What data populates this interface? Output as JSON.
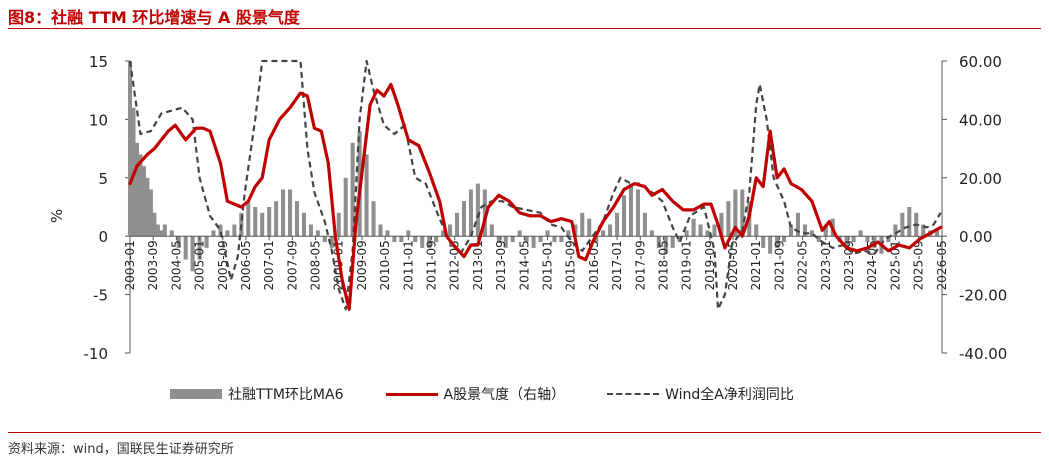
{
  "title": "图8：社融 TTM 环比增速与 A 股景气度",
  "source": "资料来源：wind，国联民生证券研究所",
  "chart_data": {
    "type": "bar+line",
    "ylabel_left": "%",
    "ylim_left": [
      -10,
      15
    ],
    "yticks_left": [
      "15",
      "10",
      "5",
      "0",
      "-5",
      "-10"
    ],
    "ylim_right": [
      -40,
      60
    ],
    "yticks_right": [
      "60.00",
      "40.00",
      "20.00",
      "0.00",
      "-20.00",
      "-40.00"
    ],
    "xlim": [
      2003.0,
      2026.34
    ],
    "xticks": [
      "2003-01",
      "2003-09",
      "2004-05",
      "2005-01",
      "2005-09",
      "2006-05",
      "2007-01",
      "2007-09",
      "2008-05",
      "2009-01",
      "2009-09",
      "2010-05",
      "2011-01",
      "2011-09",
      "2012-05",
      "2013-01",
      "2013-09",
      "2014-05",
      "2015-01",
      "2015-09",
      "2016-05",
      "2017-01",
      "2017-09",
      "2018-05",
      "2019-01",
      "2019-09",
      "2020-05",
      "2021-01",
      "2021-09",
      "2022-05",
      "2023-01",
      "2023-09",
      "2024-05",
      "2025-01",
      "2025-09",
      "2026-05"
    ],
    "legend": {
      "position": "bottom",
      "items": [
        "社融TTM环比MA6",
        "A股景气度（右轴）",
        "Wind全A净利润同比"
      ]
    },
    "colors": {
      "bar": "#8f8f8f",
      "red_line": "#c00000",
      "dash_line": "#444444"
    },
    "series": [
      {
        "name": "社融TTM环比MA6",
        "type": "bar",
        "axis": "left",
        "points": [
          [
            2003.0,
            15
          ],
          [
            2003.1,
            11
          ],
          [
            2003.2,
            8
          ],
          [
            2003.3,
            7
          ],
          [
            2003.4,
            6
          ],
          [
            2003.5,
            5
          ],
          [
            2003.6,
            4
          ],
          [
            2003.7,
            2
          ],
          [
            2003.8,
            1
          ],
          [
            2003.9,
            0.5
          ],
          [
            2004.0,
            1
          ],
          [
            2004.2,
            0.5
          ],
          [
            2004.4,
            -1
          ],
          [
            2004.6,
            -2
          ],
          [
            2004.8,
            -3
          ],
          [
            2005.0,
            -2
          ],
          [
            2005.2,
            -1
          ],
          [
            2005.4,
            0.5
          ],
          [
            2005.6,
            1
          ],
          [
            2005.8,
            0.5
          ],
          [
            2006.0,
            1
          ],
          [
            2006.2,
            2
          ],
          [
            2006.4,
            3
          ],
          [
            2006.6,
            2.5
          ],
          [
            2006.8,
            2
          ],
          [
            2007.0,
            2.5
          ],
          [
            2007.2,
            3
          ],
          [
            2007.4,
            4
          ],
          [
            2007.6,
            4
          ],
          [
            2007.8,
            3
          ],
          [
            2008.0,
            2
          ],
          [
            2008.2,
            1
          ],
          [
            2008.4,
            0.5
          ],
          [
            2008.6,
            -0.5
          ],
          [
            2008.8,
            -1
          ],
          [
            2009.0,
            2
          ],
          [
            2009.2,
            5
          ],
          [
            2009.4,
            8
          ],
          [
            2009.6,
            9
          ],
          [
            2009.8,
            7
          ],
          [
            2010.0,
            3
          ],
          [
            2010.2,
            1
          ],
          [
            2010.4,
            0.5
          ],
          [
            2010.6,
            -0.5
          ],
          [
            2010.8,
            -0.5
          ],
          [
            2011.0,
            0.5
          ],
          [
            2011.2,
            -0.5
          ],
          [
            2011.4,
            -1
          ],
          [
            2011.6,
            -1
          ],
          [
            2011.8,
            -0.5
          ],
          [
            2012.0,
            0.5
          ],
          [
            2012.2,
            1
          ],
          [
            2012.4,
            2
          ],
          [
            2012.6,
            3
          ],
          [
            2012.8,
            4
          ],
          [
            2013.0,
            4.5
          ],
          [
            2013.2,
            4
          ],
          [
            2013.4,
            1
          ],
          [
            2013.6,
            -0.5
          ],
          [
            2013.8,
            -1
          ],
          [
            2014.0,
            -0.5
          ],
          [
            2014.2,
            0.5
          ],
          [
            2014.4,
            -0.5
          ],
          [
            2014.6,
            -1
          ],
          [
            2014.8,
            -0.5
          ],
          [
            2015.0,
            0.5
          ],
          [
            2015.2,
            -0.5
          ],
          [
            2015.4,
            -0.5
          ],
          [
            2015.6,
            0.5
          ],
          [
            2015.8,
            1
          ],
          [
            2016.0,
            2
          ],
          [
            2016.2,
            1.5
          ],
          [
            2016.4,
            -0.5
          ],
          [
            2016.6,
            0.5
          ],
          [
            2016.8,
            1
          ],
          [
            2017.0,
            2
          ],
          [
            2017.2,
            3.5
          ],
          [
            2017.4,
            4.5
          ],
          [
            2017.6,
            4
          ],
          [
            2017.8,
            2
          ],
          [
            2018.0,
            0.5
          ],
          [
            2018.2,
            -1
          ],
          [
            2018.4,
            -1.5
          ],
          [
            2018.6,
            -1
          ],
          [
            2018.8,
            -0.5
          ],
          [
            2019.0,
            0.5
          ],
          [
            2019.2,
            1.5
          ],
          [
            2019.4,
            1
          ],
          [
            2019.6,
            0.5
          ],
          [
            2019.8,
            1
          ],
          [
            2020.0,
            2
          ],
          [
            2020.2,
            3
          ],
          [
            2020.4,
            4
          ],
          [
            2020.6,
            4
          ],
          [
            2020.8,
            3
          ],
          [
            2021.0,
            1
          ],
          [
            2021.2,
            -1
          ],
          [
            2021.4,
            -1.5
          ],
          [
            2021.6,
            -1
          ],
          [
            2021.8,
            -0.5
          ],
          [
            2022.0,
            1
          ],
          [
            2022.2,
            2
          ],
          [
            2022.4,
            1
          ],
          [
            2022.6,
            0.5
          ],
          [
            2022.8,
            -0.5
          ],
          [
            2023.0,
            1
          ],
          [
            2023.2,
            1.5
          ],
          [
            2023.4,
            -0.5
          ],
          [
            2023.6,
            -1
          ],
          [
            2023.8,
            -0.5
          ],
          [
            2024.0,
            0.5
          ],
          [
            2024.2,
            -0.5
          ],
          [
            2024.4,
            -1
          ],
          [
            2024.6,
            -1.5
          ],
          [
            2024.8,
            -0.5
          ],
          [
            2025.0,
            1
          ],
          [
            2025.2,
            2
          ],
          [
            2025.4,
            2.5
          ],
          [
            2025.6,
            2
          ],
          [
            2025.8,
            1
          ],
          [
            2026.0,
            0.5
          ],
          [
            2026.2,
            0.5
          ]
        ]
      },
      {
        "name": "A股景气度（右轴）",
        "type": "line",
        "axis": "right",
        "points": [
          [
            2003.0,
            18
          ],
          [
            2003.2,
            24
          ],
          [
            2003.5,
            28
          ],
          [
            2003.7,
            30
          ],
          [
            2003.9,
            33
          ],
          [
            2004.1,
            36
          ],
          [
            2004.3,
            38
          ],
          [
            2004.6,
            33
          ],
          [
            2004.9,
            37
          ],
          [
            2005.1,
            37
          ],
          [
            2005.3,
            36
          ],
          [
            2005.6,
            25
          ],
          [
            2005.8,
            12
          ],
          [
            2006.0,
            11
          ],
          [
            2006.2,
            10
          ],
          [
            2006.4,
            12
          ],
          [
            2006.6,
            17
          ],
          [
            2006.8,
            20
          ],
          [
            2007.0,
            33
          ],
          [
            2007.3,
            40
          ],
          [
            2007.6,
            44
          ],
          [
            2007.9,
            49
          ],
          [
            2008.1,
            48
          ],
          [
            2008.3,
            37
          ],
          [
            2008.5,
            36
          ],
          [
            2008.7,
            25
          ],
          [
            2008.9,
            0
          ],
          [
            2009.1,
            -15
          ],
          [
            2009.3,
            -25
          ],
          [
            2009.5,
            5
          ],
          [
            2009.7,
            25
          ],
          [
            2009.9,
            45
          ],
          [
            2010.1,
            50
          ],
          [
            2010.3,
            48
          ],
          [
            2010.5,
            52
          ],
          [
            2010.7,
            45
          ],
          [
            2011.0,
            33
          ],
          [
            2011.3,
            31
          ],
          [
            2011.6,
            22
          ],
          [
            2011.9,
            12
          ],
          [
            2012.1,
            0
          ],
          [
            2012.3,
            -3
          ],
          [
            2012.6,
            -7
          ],
          [
            2012.8,
            -3
          ],
          [
            2013.0,
            -3
          ],
          [
            2013.3,
            10
          ],
          [
            2013.6,
            14
          ],
          [
            2013.9,
            12
          ],
          [
            2014.2,
            8
          ],
          [
            2014.5,
            7
          ],
          [
            2014.8,
            7
          ],
          [
            2015.1,
            5
          ],
          [
            2015.4,
            6
          ],
          [
            2015.7,
            5
          ],
          [
            2015.9,
            -7
          ],
          [
            2016.1,
            -8
          ],
          [
            2016.3,
            -2
          ],
          [
            2016.6,
            5
          ],
          [
            2016.9,
            10
          ],
          [
            2017.2,
            16
          ],
          [
            2017.5,
            18
          ],
          [
            2017.8,
            17
          ],
          [
            2018.0,
            14
          ],
          [
            2018.3,
            16
          ],
          [
            2018.6,
            12
          ],
          [
            2018.9,
            9
          ],
          [
            2019.2,
            9
          ],
          [
            2019.5,
            11
          ],
          [
            2019.7,
            11
          ],
          [
            2019.9,
            4
          ],
          [
            2020.1,
            -4
          ],
          [
            2020.4,
            3
          ],
          [
            2020.6,
            0
          ],
          [
            2020.8,
            7
          ],
          [
            2021.0,
            20
          ],
          [
            2021.2,
            17
          ],
          [
            2021.4,
            36
          ],
          [
            2021.6,
            20
          ],
          [
            2021.8,
            23
          ],
          [
            2022.0,
            18
          ],
          [
            2022.3,
            16
          ],
          [
            2022.6,
            12
          ],
          [
            2022.9,
            2
          ],
          [
            2023.1,
            5
          ],
          [
            2023.3,
            0
          ],
          [
            2023.6,
            -4
          ],
          [
            2023.9,
            -5
          ],
          [
            2024.2,
            -4
          ],
          [
            2024.5,
            -2
          ],
          [
            2024.8,
            -5
          ],
          [
            2025.1,
            -3
          ],
          [
            2025.4,
            -4
          ],
          [
            2025.7,
            -1
          ],
          [
            2026.0,
            1
          ],
          [
            2026.3,
            3
          ]
        ]
      },
      {
        "name": "Wind全A净利润同比",
        "type": "dashed-line",
        "axis": "right",
        "points": [
          [
            2003.0,
            60
          ],
          [
            2003.3,
            35
          ],
          [
            2003.6,
            36
          ],
          [
            2003.9,
            42
          ],
          [
            2004.2,
            43
          ],
          [
            2004.5,
            44
          ],
          [
            2004.8,
            40
          ],
          [
            2005.0,
            20
          ],
          [
            2005.3,
            7
          ],
          [
            2005.6,
            2
          ],
          [
            2005.9,
            -15
          ],
          [
            2006.1,
            -7
          ],
          [
            2006.3,
            15
          ],
          [
            2006.6,
            40
          ],
          [
            2006.8,
            60
          ],
          [
            2007.5,
            60
          ],
          [
            2007.9,
            60
          ],
          [
            2008.1,
            30
          ],
          [
            2008.3,
            15
          ],
          [
            2008.6,
            5
          ],
          [
            2008.8,
            -5
          ],
          [
            2009.0,
            -18
          ],
          [
            2009.2,
            -25
          ],
          [
            2009.4,
            -5
          ],
          [
            2009.6,
            40
          ],
          [
            2009.8,
            60
          ],
          [
            2010.0,
            50
          ],
          [
            2010.3,
            38
          ],
          [
            2010.6,
            35
          ],
          [
            2010.9,
            38
          ],
          [
            2011.2,
            20
          ],
          [
            2011.5,
            18
          ],
          [
            2011.9,
            6
          ],
          [
            2012.2,
            -2
          ],
          [
            2012.5,
            -6
          ],
          [
            2012.8,
            0
          ],
          [
            2013.1,
            10
          ],
          [
            2013.4,
            12
          ],
          [
            2013.7,
            12
          ],
          [
            2014.0,
            10
          ],
          [
            2014.4,
            9
          ],
          [
            2014.8,
            8
          ],
          [
            2015.1,
            4
          ],
          [
            2015.4,
            3
          ],
          [
            2015.7,
            -2
          ],
          [
            2016.0,
            -5
          ],
          [
            2016.3,
            0
          ],
          [
            2016.6,
            5
          ],
          [
            2016.9,
            15
          ],
          [
            2017.1,
            20
          ],
          [
            2017.4,
            18
          ],
          [
            2017.7,
            18
          ],
          [
            2018.0,
            15
          ],
          [
            2018.3,
            12
          ],
          [
            2018.6,
            3
          ],
          [
            2018.8,
            -2
          ],
          [
            2019.1,
            7
          ],
          [
            2019.5,
            10
          ],
          [
            2019.8,
            -5
          ],
          [
            2019.9,
            -25
          ],
          [
            2020.1,
            -20
          ],
          [
            2020.3,
            -3
          ],
          [
            2020.6,
            2
          ],
          [
            2020.8,
            15
          ],
          [
            2021.0,
            45
          ],
          [
            2021.1,
            52
          ],
          [
            2021.3,
            40
          ],
          [
            2021.5,
            20
          ],
          [
            2021.8,
            12
          ],
          [
            2022.0,
            3
          ],
          [
            2022.3,
            1
          ],
          [
            2022.6,
            1
          ],
          [
            2022.9,
            -2
          ],
          [
            2023.2,
            -4
          ],
          [
            2023.5,
            -3
          ],
          [
            2023.8,
            -6
          ],
          [
            2024.1,
            -5
          ],
          [
            2024.4,
            -6
          ],
          [
            2024.7,
            -1
          ],
          [
            2025.0,
            1
          ],
          [
            2025.3,
            3
          ],
          [
            2025.6,
            4
          ],
          [
            2025.9,
            3
          ],
          [
            2026.1,
            4
          ],
          [
            2026.3,
            8
          ]
        ]
      }
    ]
  }
}
